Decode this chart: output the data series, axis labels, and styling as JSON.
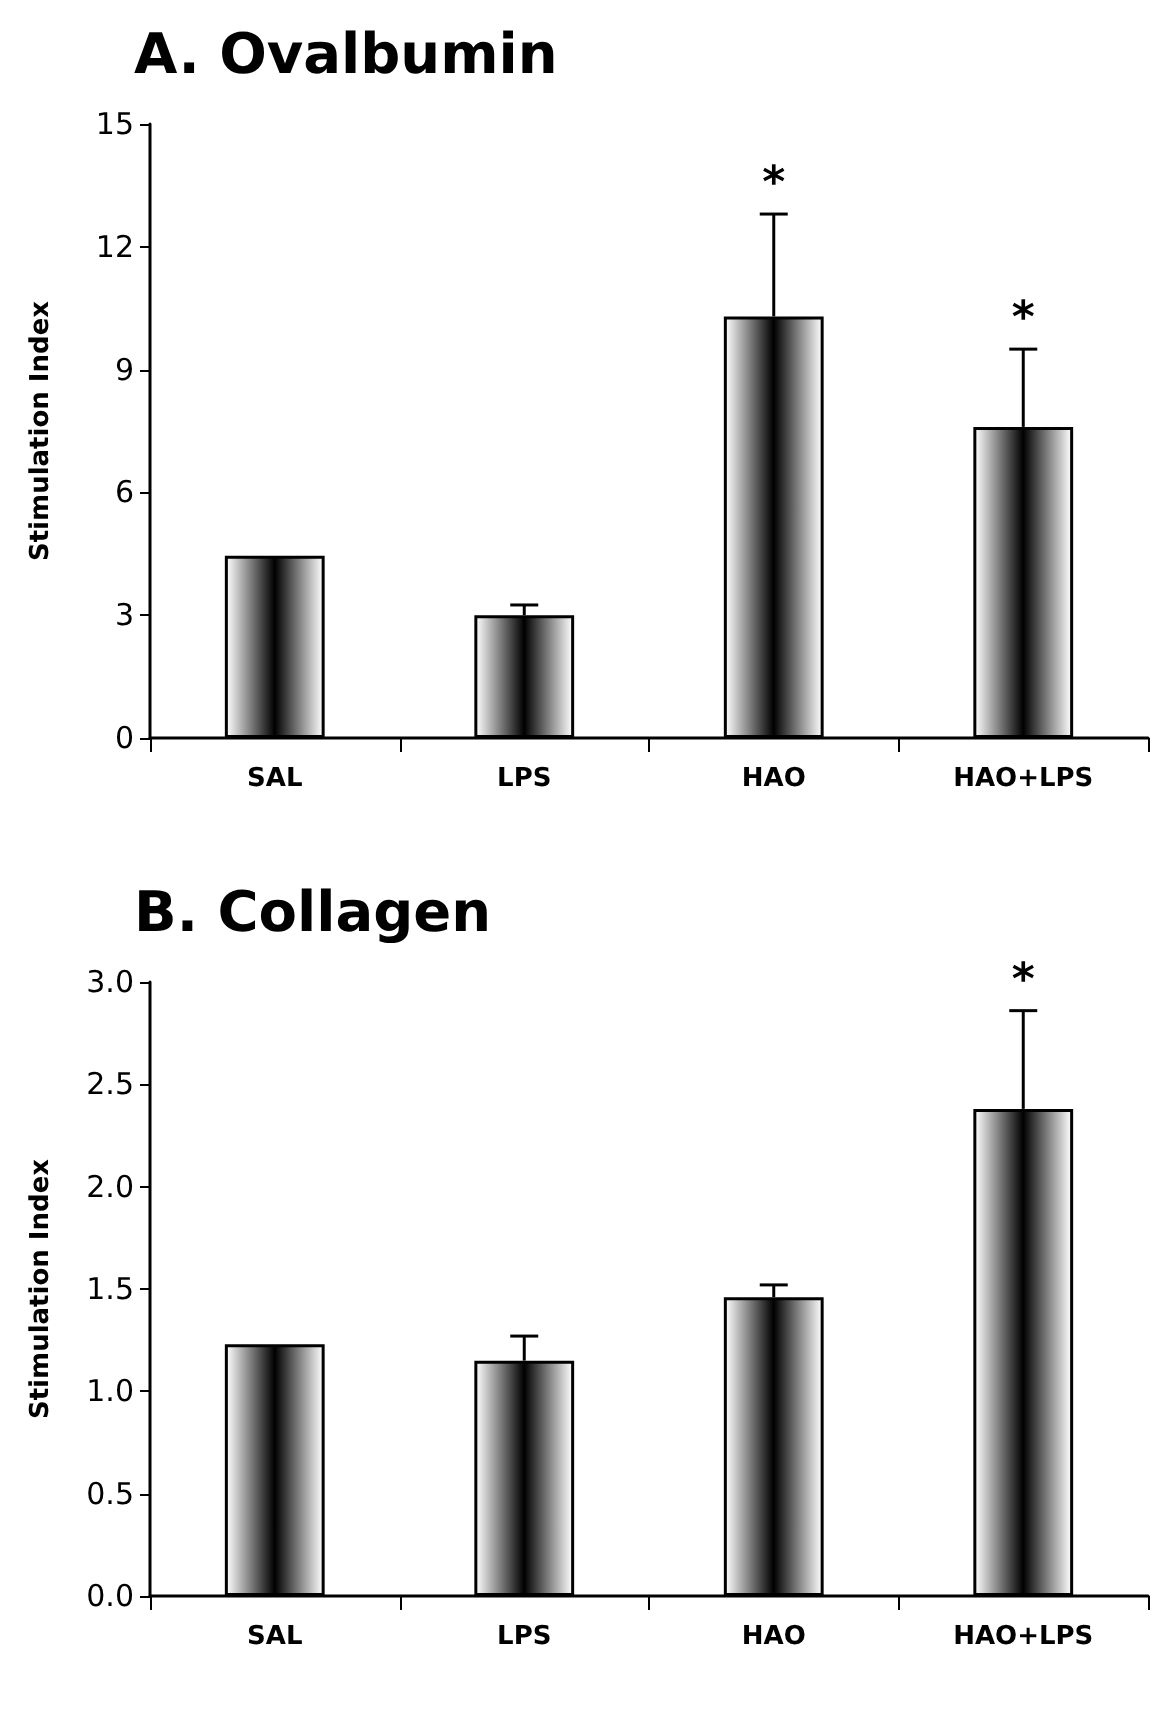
{
  "chart_data": [
    {
      "type": "bar",
      "title": "A. Ovalbumin",
      "ylabel": "Stimulation Index",
      "categories": [
        "SAL",
        "LPS",
        "HAO",
        "HAO+LPS"
      ],
      "values": [
        4.45,
        3.0,
        10.3,
        7.6
      ],
      "errors": [
        null,
        0.25,
        2.5,
        1.9
      ],
      "color": "#000000",
      "ylim": [
        0,
        15
      ],
      "yticks": [
        0,
        3,
        6,
        9,
        12,
        15
      ],
      "grid": false,
      "annotations": [
        {
          "text": "*",
          "x": "HAO",
          "y": 12.8
        },
        {
          "text": "*",
          "x": "HAO+LPS",
          "y": 9.5
        }
      ]
    },
    {
      "type": "bar",
      "title": "B. Collagen",
      "ylabel": "Stimulation Index",
      "categories": [
        "SAL",
        "LPS",
        "HAO",
        "HAO+LPS"
      ],
      "values": [
        1.23,
        1.15,
        1.46,
        2.38
      ],
      "errors": [
        null,
        0.12,
        0.06,
        0.48
      ],
      "color": "#000000",
      "ylim": [
        0,
        3
      ],
      "yticks": [
        {
          "value": 0,
          "label": "0.0"
        },
        {
          "value": 0.5,
          "label": "0.5"
        },
        {
          "value": 1,
          "label": "1.0"
        },
        {
          "value": 1.5,
          "label": "1.5"
        },
        {
          "value": 2,
          "label": "2.0"
        },
        {
          "value": 2.5,
          "label": "2.5"
        },
        {
          "value": 3,
          "label": "3.0"
        }
      ],
      "grid": false,
      "annotations": [
        {
          "text": "*",
          "x": "HAO+LPS",
          "y": 2.86
        }
      ]
    }
  ]
}
